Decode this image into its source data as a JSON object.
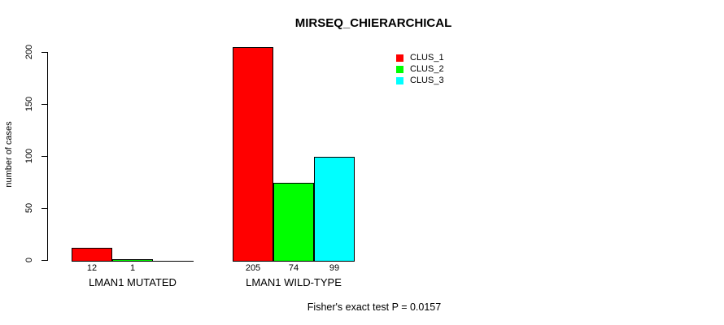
{
  "title": "MIRSEQ_CHIERARCHICAL",
  "footer": "Fisher's exact test P = 0.0157",
  "chart_data": {
    "type": "bar",
    "title": "MIRSEQ_CHIERARCHICAL",
    "ylabel": "number of cases",
    "xlabel": "",
    "ylim": [
      0,
      205
    ],
    "yticks": [
      0,
      50,
      100,
      150,
      200
    ],
    "grid": false,
    "legend_position": "top-right",
    "categories": [
      "LMAN1 MUTATED",
      "LMAN1 WILD-TYPE"
    ],
    "series": [
      {
        "name": "CLUS_1",
        "color": "#ff0000",
        "values": [
          12,
          205
        ]
      },
      {
        "name": "CLUS_2",
        "color": "#00ff00",
        "values": [
          1,
          74
        ]
      },
      {
        "name": "CLUS_3",
        "color": "#00ffff",
        "values": [
          0,
          99
        ]
      }
    ],
    "bar_labels": [
      [
        "12",
        "1",
        ""
      ],
      [
        "205",
        "74",
        "99"
      ]
    ],
    "annotation": "Fisher's exact test P = 0.0157"
  }
}
